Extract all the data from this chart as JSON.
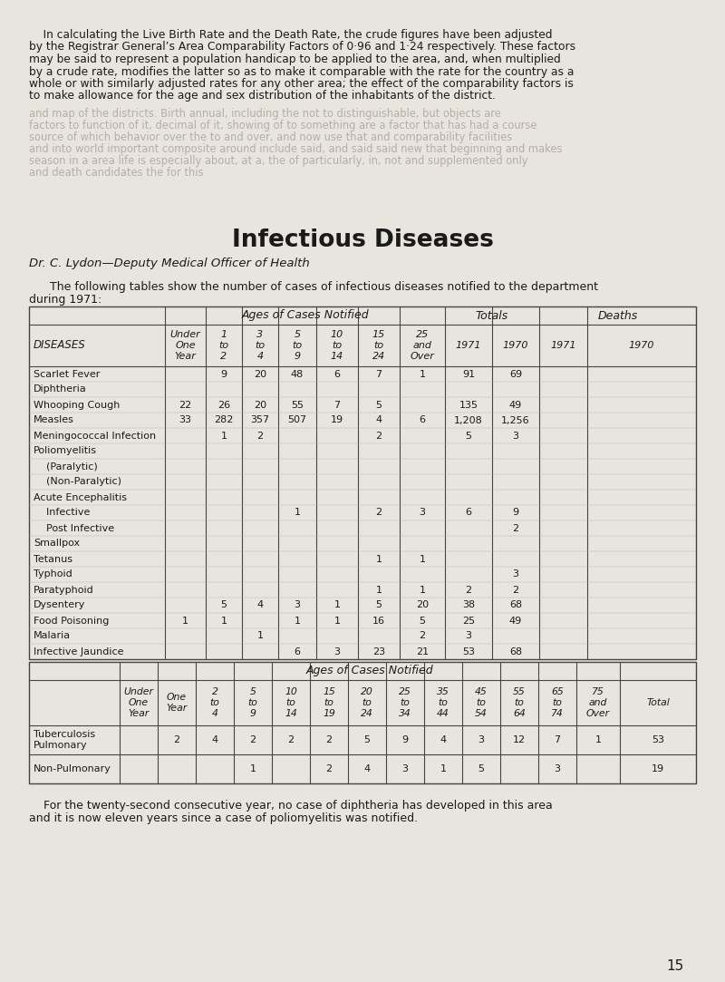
{
  "bg_color": "#e8e5df",
  "text_color": "#1a1a1a",
  "page_num": "15",
  "intro_lines": [
    "    In calculating the Live Birth Rate and the Death Rate, the crude figures have been adjusted",
    "by the Registrar General’s Area Comparability Factors of 0·96 and 1·24 respectively. These factors",
    "may be said to represent a population handicap to be applied to the area, and, when multiplied",
    "by a crude rate, modifies the latter so as to make it comparable with the rate for the country as a",
    "whole or with similarly adjusted rates for any other area; the effect of the comparability factors is",
    "to make allowance for the age and sex distribution of the inhabitants of the district."
  ],
  "fade_lines": [
    "and map of the districts. Birth annual, including the not to distinguishable, but objects are",
    "factors to function of it, decimal of it, showing of to something are a factor that has had a course",
    "source of which behavior over the to and over, and now use that and comparability facilities",
    "and into world important composite around include said, and said said new that beginning and makes",
    "season in a area life is especially about, at a, the of particularly, in, not and supplemented only",
    "and death candidates the for this"
  ],
  "section_title": "Infectious Diseases",
  "author_line": "Dr. C. Lydon—Deputy Medical Officer of Health",
  "table1_rows": [
    [
      "Scarlet Fever",
      "",
      "9",
      "20",
      "48",
      "6",
      "7",
      "1",
      "91",
      "69",
      "",
      ""
    ],
    [
      "Diphtheria",
      "",
      "",
      "",
      "",
      "",
      "",
      "",
      "",
      "",
      "",
      ""
    ],
    [
      "Whooping Cough",
      "22",
      "26",
      "20",
      "55",
      "7",
      "5",
      "",
      "135",
      "49",
      "",
      ""
    ],
    [
      "Measles",
      "33",
      "282",
      "357",
      "507",
      "19",
      "4",
      "6",
      "1,208",
      "1,256",
      "",
      ""
    ],
    [
      "Meningococcal Infection",
      "",
      "1",
      "2",
      "",
      "",
      "2",
      "",
      "5",
      "3",
      "",
      ""
    ],
    [
      "Poliomyelitis",
      "",
      "",
      "",
      "",
      "",
      "",
      "",
      "",
      "",
      "",
      ""
    ],
    [
      "    (Paralytic)",
      "",
      "",
      "",
      "",
      "",
      "",
      "",
      "",
      "",
      "",
      ""
    ],
    [
      "    (Non-Paralytic)",
      "",
      "",
      "",
      "",
      "",
      "",
      "",
      "",
      "",
      "",
      ""
    ],
    [
      "Acute Encephalitis",
      "",
      "",
      "",
      "",
      "",
      "",
      "",
      "",
      "",
      "",
      ""
    ],
    [
      "    Infective",
      "",
      "",
      "",
      "1",
      "",
      "2",
      "3",
      "6",
      "9",
      "",
      ""
    ],
    [
      "    Post Infective",
      "",
      "",
      "",
      "",
      "",
      "",
      "",
      "",
      "2",
      "",
      ""
    ],
    [
      "Smallpox",
      "",
      "",
      "",
      "",
      "",
      "",
      "",
      "",
      "",
      "",
      ""
    ],
    [
      "Tetanus",
      "",
      "",
      "",
      "",
      "",
      "1",
      "1",
      "",
      "",
      "",
      ""
    ],
    [
      "Typhoid",
      "",
      "",
      "",
      "",
      "",
      "",
      "",
      "",
      "3",
      "",
      ""
    ],
    [
      "Paratyphoid",
      "",
      "",
      "",
      "",
      "",
      "1",
      "1",
      "2",
      "2",
      "",
      ""
    ],
    [
      "Dysentery",
      "",
      "5",
      "4",
      "3",
      "1",
      "5",
      "20",
      "38",
      "68",
      "",
      ""
    ],
    [
      "Food Poisoning",
      "1",
      "1",
      "",
      "1",
      "1",
      "16",
      "5",
      "25",
      "49",
      "",
      ""
    ],
    [
      "Malaria",
      "",
      "",
      "1",
      "",
      "",
      "",
      "2",
      "3",
      "",
      "",
      ""
    ],
    [
      "Infective Jaundice",
      "",
      "",
      "",
      "6",
      "3",
      "23",
      "21",
      "53",
      "68",
      "",
      ""
    ]
  ],
  "table2_rows": [
    [
      "Tuberculosis\nPulmonary",
      "",
      "2",
      "4",
      "2",
      "2",
      "2",
      "5",
      "9",
      "4",
      "3",
      "12",
      "7",
      "1",
      "53"
    ],
    [
      "Non-Pulmonary",
      "",
      "",
      "",
      "1",
      "",
      "2",
      "4",
      "3",
      "1",
      "5",
      "",
      "3",
      "",
      "19"
    ]
  ],
  "footer_lines": [
    "    For the twenty-second consecutive year, no case of diphtheria has developed in this area",
    "and it is now eleven years since a case of poliomyelitis was notified."
  ]
}
